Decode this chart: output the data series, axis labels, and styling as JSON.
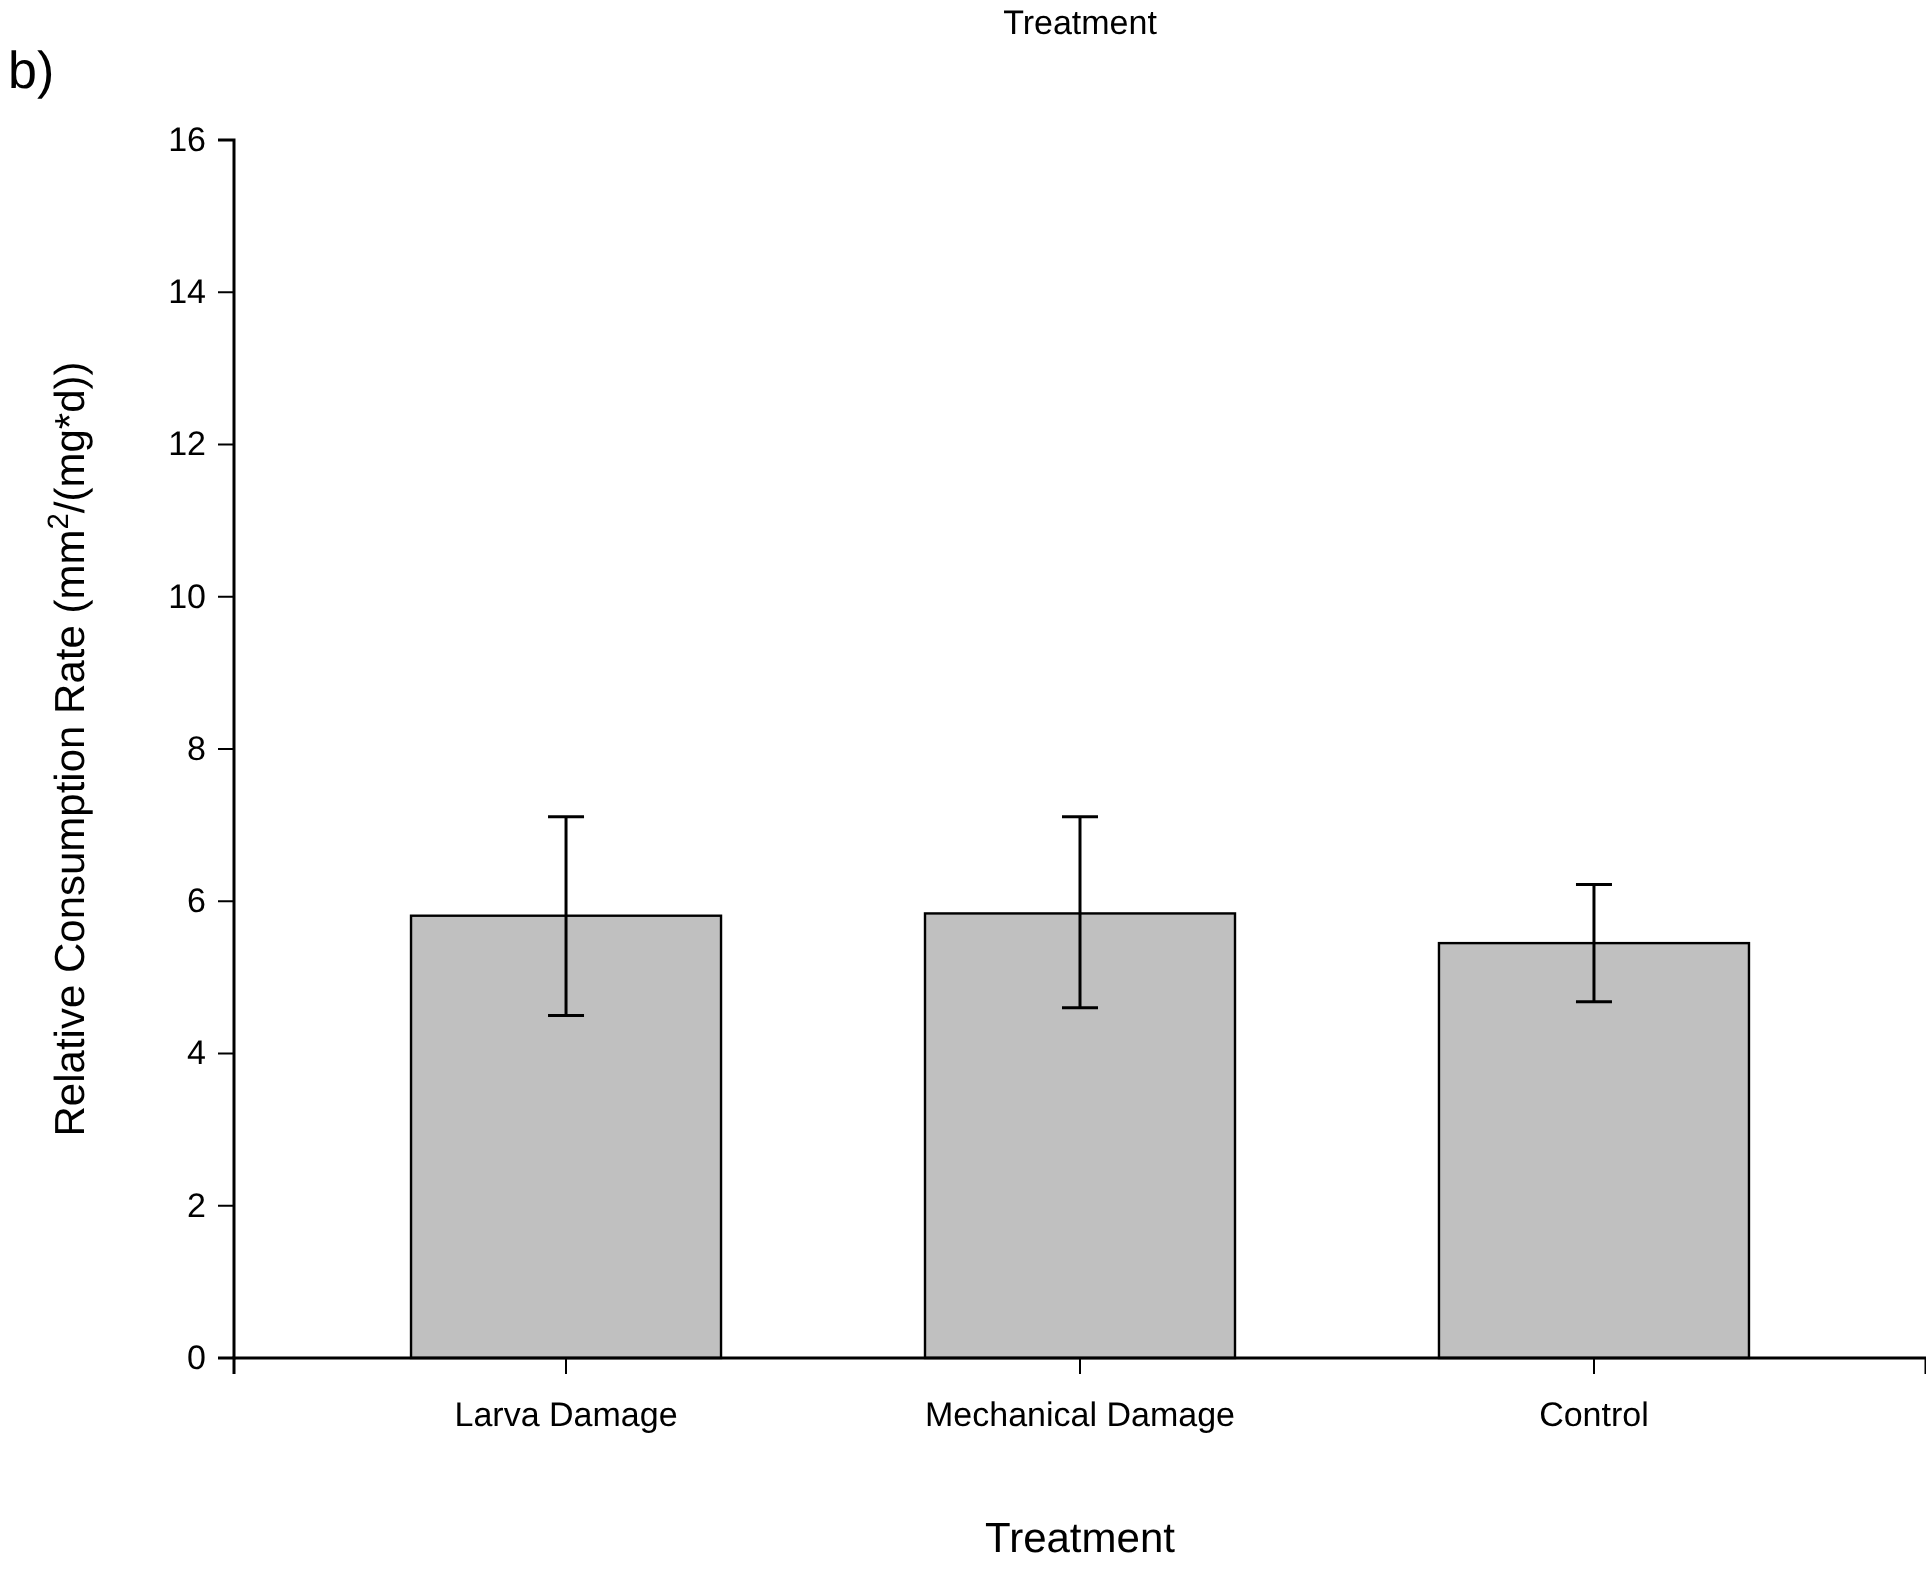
{
  "chart_data": {
    "type": "bar",
    "title": "Treatment",
    "xlabel": "Treatment",
    "ylabel": "Relative Consumption Rate (mm$^{2}$/(mg*d))",
    "annotations": [
      "b)"
    ],
    "categories": [
      "Larva Damage",
      "Mechanical Damage",
      "Control"
    ],
    "series": [
      {
        "color": "#c0c0c0",
        "values": [
          5.81,
          5.84,
          5.45
        ],
        "errors": [
          [
            4.5,
            7.11
          ],
          [
            4.6,
            7.11
          ],
          [
            4.68,
            6.22
          ]
        ]
      }
    ],
    "ylim": [
      0,
      16
    ],
    "yticks": [
      0,
      2,
      4,
      6,
      8,
      10,
      12,
      14,
      16
    ],
    "grid": false
  }
}
